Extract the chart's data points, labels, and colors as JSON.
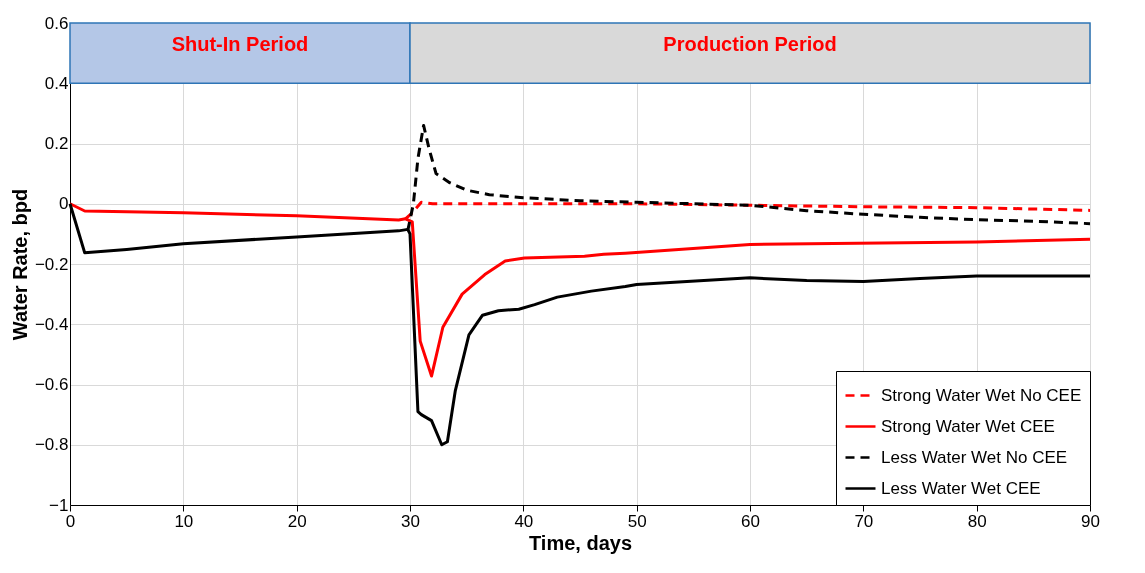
{
  "chart_data": {
    "type": "line",
    "xlabel": "Time, days",
    "ylabel": "Water Rate, bpd",
    "xlim": [
      0,
      90
    ],
    "xticks": [
      0,
      10,
      20,
      30,
      40,
      50,
      60,
      70,
      80,
      90
    ],
    "ylim": [
      -1,
      0.6
    ],
    "yticks": [
      -1,
      -0.8,
      -0.6,
      -0.4,
      -0.2,
      0,
      0.2,
      0.4,
      0.6
    ],
    "grid": true,
    "legend": "bottom right",
    "bands": [
      {
        "axis": "x",
        "from": 0,
        "to": 30,
        "label": "Shut-In Period",
        "color": "#b4c7e7"
      },
      {
        "axis": "x",
        "from": 30,
        "to": 90,
        "label": "Production Period",
        "color": "#d9d9d9"
      }
    ],
    "series": [
      {
        "name": "Strong Water Wet No CEE",
        "color": "#ff0000",
        "line_style": "dashed",
        "x": [
          29.6,
          30.2,
          31,
          32,
          35,
          40,
          50,
          60,
          70,
          80,
          90
        ],
        "values": [
          -0.05,
          -0.03,
          0.005,
          0.0,
          0.0,
          0.0,
          0.0,
          -0.005,
          -0.01,
          -0.013,
          -0.022
        ]
      },
      {
        "name": "Strong Water Wet CEE",
        "color": "#ff0000",
        "line_style": "solid",
        "x": [
          0,
          1.3,
          10,
          20,
          29,
          29.6,
          30.2,
          30.9,
          31.9,
          32.9,
          34.6,
          36.6,
          38.4,
          40.1,
          45.4,
          47.1,
          49,
          60,
          80,
          90
        ],
        "values": [
          0,
          -0.024,
          -0.03,
          -0.04,
          -0.054,
          -0.05,
          -0.06,
          -0.456,
          -0.572,
          -0.41,
          -0.3,
          -0.235,
          -0.19,
          -0.18,
          -0.174,
          -0.168,
          -0.164,
          -0.135,
          -0.127,
          -0.118
        ]
      },
      {
        "name": "Less Water Wet No CEE",
        "color": "#000000",
        "line_style": "dashed",
        "x": [
          29.8,
          30.3,
          30.7,
          31.2,
          31.7,
          32.3,
          33.5,
          35,
          37,
          40,
          45,
          50,
          55,
          60,
          65,
          70,
          75,
          80,
          85,
          90
        ],
        "values": [
          -0.09,
          0.0,
          0.15,
          0.26,
          0.18,
          0.1,
          0.07,
          0.045,
          0.03,
          0.02,
          0.01,
          0.005,
          0.0,
          -0.005,
          -0.023,
          -0.035,
          -0.045,
          -0.053,
          -0.058,
          -0.066
        ]
      },
      {
        "name": "Less Water Wet CEE",
        "color": "#000000",
        "line_style": "solid",
        "x": [
          0,
          1.3,
          5,
          10,
          20,
          29,
          29.8,
          30,
          30.7,
          31,
          31.9,
          32.8,
          33.3,
          34,
          35.2,
          36.4,
          37.8,
          39.6,
          41,
          43,
          46,
          49,
          50,
          60,
          65,
          70,
          75,
          80,
          90
        ],
        "values": [
          0,
          -0.163,
          -0.152,
          -0.133,
          -0.11,
          -0.09,
          -0.085,
          -0.1,
          -0.69,
          -0.7,
          -0.72,
          -0.8,
          -0.79,
          -0.62,
          -0.435,
          -0.37,
          -0.355,
          -0.35,
          -0.335,
          -0.31,
          -0.29,
          -0.275,
          -0.268,
          -0.246,
          -0.255,
          -0.258,
          -0.248,
          -0.24,
          -0.24
        ]
      }
    ]
  }
}
